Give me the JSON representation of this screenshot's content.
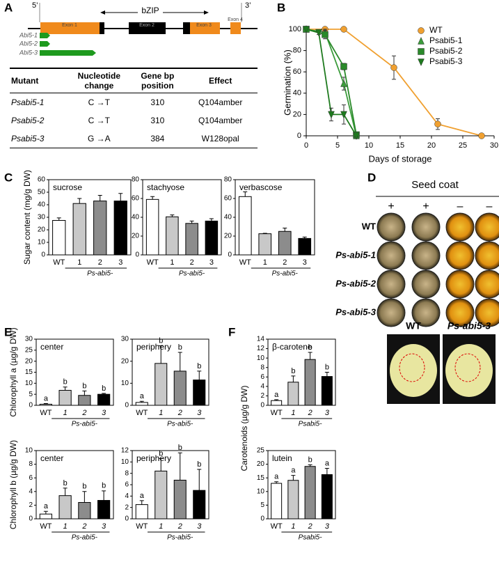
{
  "panel_labels": [
    "A",
    "B",
    "C",
    "D",
    "E",
    "F"
  ],
  "gene_model": {
    "end5": "5’",
    "end3": "3’",
    "domain": "bZIP",
    "exons": [
      "Exon 1",
      "Exon 2",
      "Exon 3",
      "Exon 4"
    ],
    "alleles": [
      "Abi5-1",
      "Abi5-2",
      "Abi5-3"
    ]
  },
  "table": {
    "header": [
      "Mutant",
      "Nucleotide change",
      "Gene bp position",
      "Effect"
    ],
    "rows": [
      [
        "Psabi5-1",
        "C →T",
        310,
        "Q104amber"
      ],
      [
        "Psabi5-2",
        "C →T",
        310,
        "Q104amber"
      ],
      [
        "Psabi5-3",
        "G →A",
        384,
        "W128opal"
      ]
    ]
  },
  "chart_data": [
    {
      "type": "line",
      "xlabel": "Days of storage",
      "ylabel": "Germination (%)",
      "xlim": [
        0,
        30
      ],
      "xticks": [
        0,
        5,
        10,
        15,
        20,
        25,
        30
      ],
      "ylim": [
        0,
        100
      ],
      "yticks": [
        0,
        20,
        40,
        60,
        80,
        100
      ],
      "legend": "upper right",
      "series": [
        {
          "name": "WT",
          "color": "#f0a030",
          "marker": "circle",
          "x": [
            0,
            3,
            6,
            14,
            21,
            28
          ],
          "values": [
            100,
            100,
            100,
            64,
            11,
            0
          ],
          "errors": [
            0,
            2,
            1,
            11,
            5,
            0
          ]
        },
        {
          "name": "Psabi5-1",
          "color": "#3c9c3c",
          "marker": "triangle-up",
          "x": [
            0,
            3,
            6,
            8
          ],
          "values": [
            100,
            97,
            49,
            0
          ],
          "errors": [
            0,
            3,
            6,
            1
          ]
        },
        {
          "name": "Psabi5-2",
          "color": "#2a8a2a",
          "marker": "square",
          "x": [
            0,
            3,
            6,
            8
          ],
          "values": [
            100,
            95,
            65,
            1
          ],
          "errors": [
            0,
            4,
            3,
            2
          ]
        },
        {
          "name": "Psabi5-3",
          "color": "#1e7a1e",
          "marker": "triangle-down",
          "x": [
            0,
            2,
            4,
            6,
            8
          ],
          "values": [
            100,
            97,
            20,
            20,
            0
          ],
          "errors": [
            0,
            2,
            6,
            9,
            1
          ]
        }
      ]
    },
    {
      "type": "bar",
      "title": "sucrose",
      "ylabel": "Sugar content (mg/g DW)",
      "categories": [
        "WT",
        "1",
        "2",
        "3"
      ],
      "group_label": "Ps-abi5-",
      "colors": [
        "#ffffff",
        "#c8c8c8",
        "#8c8c8c",
        "#000000"
      ],
      "values": [
        27.5,
        41,
        43,
        43
      ],
      "errors": [
        2,
        4,
        4.5,
        6
      ],
      "ylim": [
        0,
        60
      ],
      "yticks": [
        0,
        10,
        20,
        30,
        40,
        50,
        60
      ]
    },
    {
      "type": "bar",
      "title": "stachyose",
      "categories": [
        "WT",
        "1",
        "2",
        "3"
      ],
      "group_label": "Ps-abi5-",
      "colors": [
        "#ffffff",
        "#c8c8c8",
        "#8c8c8c",
        "#000000"
      ],
      "values": [
        59,
        40.5,
        33.5,
        36
      ],
      "errors": [
        3,
        2,
        2.5,
        2.5
      ],
      "ylim": [
        0,
        80
      ],
      "yticks": [
        0,
        20,
        40,
        60,
        80
      ]
    },
    {
      "type": "bar",
      "title": "verbascose",
      "categories": [
        "WT",
        "1",
        "2",
        "3"
      ],
      "group_label": "Ps-abi5-",
      "colors": [
        "#ffffff",
        "#c8c8c8",
        "#8c8c8c",
        "#000000"
      ],
      "values": [
        62,
        22.5,
        25,
        17.5
      ],
      "errors": [
        5,
        0.5,
        3.5,
        1.5
      ],
      "ylim": [
        0,
        80
      ],
      "yticks": [
        0,
        20,
        40,
        60,
        80
      ]
    },
    {
      "type": "bar",
      "title": "center",
      "ylabel": "Chlorophyll a (µg/g DW)",
      "categories": [
        "WT",
        "1",
        "2",
        "3"
      ],
      "group_label": "Ps-abi5-",
      "colors": [
        "#ffffff",
        "#c8c8c8",
        "#8c8c8c",
        "#000000"
      ],
      "values": [
        0.5,
        6.8,
        4.5,
        5.0
      ],
      "errors": [
        0.3,
        1.5,
        2,
        0.4
      ],
      "letters": [
        "a",
        "b",
        "b",
        "b"
      ],
      "ylim": [
        0,
        30
      ],
      "yticks": [
        0,
        5,
        10,
        15,
        20,
        25,
        30
      ]
    },
    {
      "type": "bar",
      "title": "periphery",
      "categories": [
        "WT",
        "1",
        "2",
        "3"
      ],
      "group_label": "Ps-abi5-",
      "colors": [
        "#ffffff",
        "#c8c8c8",
        "#8c8c8c",
        "#000000"
      ],
      "values": [
        1.3,
        19,
        15.5,
        11.5
      ],
      "errors": [
        0.5,
        8,
        8.5,
        4
      ],
      "letters": [
        "a",
        "b",
        "b",
        "b"
      ],
      "ylim": [
        0,
        30
      ],
      "yticks": [
        0,
        10,
        20,
        30
      ]
    },
    {
      "type": "bar",
      "title": "center",
      "ylabel": "Chlorophyll b (µg/g DW)",
      "categories": [
        "WT",
        "1",
        "2",
        "3"
      ],
      "group_label": "Ps-abi5-",
      "colors": [
        "#ffffff",
        "#c8c8c8",
        "#8c8c8c",
        "#000000"
      ],
      "values": [
        0.7,
        3.4,
        2.4,
        2.7
      ],
      "errors": [
        0.4,
        1.1,
        1.6,
        1.4
      ],
      "letters": [
        "a",
        "b",
        "b",
        "b"
      ],
      "ylim": [
        0,
        10
      ],
      "yticks": [
        0,
        2,
        4,
        6,
        8,
        10
      ]
    },
    {
      "type": "bar",
      "title": "periphery",
      "categories": [
        "WT",
        "1",
        "2",
        "3"
      ],
      "group_label": "Ps-abi5-",
      "colors": [
        "#ffffff",
        "#c8c8c8",
        "#8c8c8c",
        "#000000"
      ],
      "values": [
        2.5,
        8.4,
        6.8,
        5.0
      ],
      "errors": [
        0.7,
        2.2,
        4.8,
        3.7
      ],
      "letters": [
        "a",
        "b",
        "b",
        "b"
      ],
      "ylim": [
        0,
        12
      ],
      "yticks": [
        0,
        2,
        4,
        6,
        8,
        10,
        12
      ]
    },
    {
      "type": "bar",
      "title": "β-carotene",
      "ylabel": "Carotenoids (µg/g DW)",
      "categories": [
        "WT",
        "1",
        "2",
        "3"
      ],
      "group_label": "Psabi5-",
      "colors": [
        "#ffffff",
        "#c8c8c8",
        "#8c8c8c",
        "#000000"
      ],
      "values": [
        1.0,
        4.9,
        9.7,
        6.1
      ],
      "errors": [
        0.2,
        1.3,
        1.5,
        0.9
      ],
      "letters": [
        "a",
        "b",
        "b",
        "b"
      ],
      "ylim": [
        0,
        14
      ],
      "yticks": [
        0,
        2,
        4,
        6,
        8,
        10,
        12,
        14
      ]
    },
    {
      "type": "bar",
      "title": "lutein",
      "categories": [
        "WT",
        "1",
        "2",
        "3"
      ],
      "group_label": "Psabi5-",
      "colors": [
        "#ffffff",
        "#c8c8c8",
        "#8c8c8c",
        "#000000"
      ],
      "values": [
        13,
        14.1,
        19.2,
        16.2
      ],
      "errors": [
        0.6,
        1.8,
        0.6,
        2.3
      ],
      "letters": [
        "a",
        "a",
        "b",
        "a"
      ],
      "ylim": [
        0,
        25
      ],
      "yticks": [
        0,
        5,
        10,
        15,
        20,
        25
      ]
    }
  ],
  "seed_panel": {
    "title": "Seed coat",
    "coat": [
      "+",
      "+",
      "–",
      "–"
    ],
    "rows": [
      "WT",
      "Ps-abi5-1",
      "Ps-abi5-2",
      "Ps-abi5-3"
    ],
    "photos": [
      "WT",
      "Ps-abi5-3"
    ]
  }
}
